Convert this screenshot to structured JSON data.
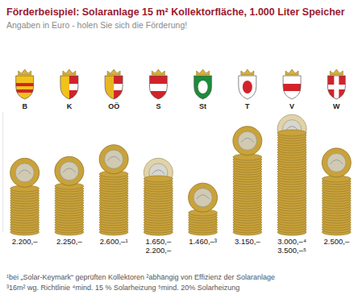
{
  "chart_data": {
    "type": "bar",
    "title": "Förderbeispiel: Solaranlage 15 m² Kollektorfläche, 1.000 Liter Speicher",
    "subtitle": "Angaben in Euro - holen Sie sich die Förderung!",
    "categories": [
      "B",
      "K",
      "OÖ",
      "S",
      "St",
      "T",
      "V",
      "W"
    ],
    "series": [
      {
        "color": "#c9a23a",
        "values": [
          2200,
          2250,
          2600,
          1650,
          1460,
          3150,
          3000,
          2500
        ],
        "value_labels": [
          "2.200,–",
          "2.250,–",
          "2.600,–¹",
          "1.650,–",
          "1.460,–³",
          "3.150,–",
          "3.000,–⁴",
          "2.500,–"
        ]
      },
      {
        "color": "#e2d3a6",
        "values": [
          null,
          null,
          null,
          2200,
          null,
          null,
          3500,
          null
        ],
        "value_labels": [
          null,
          null,
          null,
          "2.200,–",
          null,
          null,
          "3.500,–⁵",
          null
        ]
      }
    ],
    "ylim": [
      0,
      3600
    ],
    "tick_labels": "x",
    "data_labels": true,
    "annotations": [
      "¹bei „Solar-Keymark“ geprüften Kollektoren ²abhängig von Effizienz der Solaranlage",
      "³16m² wg. Richtlinie ⁴mind. 15 % Solarheizung ⁵mind. 20% Solarheizung"
    ]
  }
}
